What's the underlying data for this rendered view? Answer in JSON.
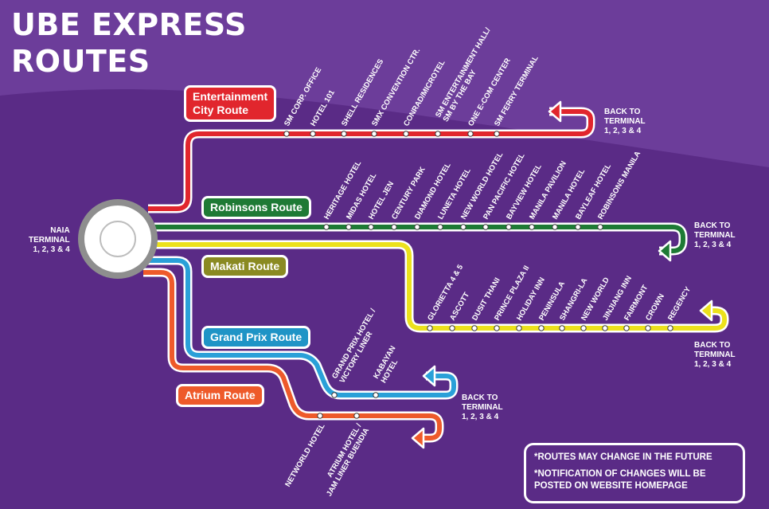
{
  "title": [
    "UBE EXPRESS",
    "ROUTES"
  ],
  "origin": [
    "NAIA",
    "TERMINAL",
    "1, 2, 3 & 4"
  ],
  "routes": [
    {
      "id": "entertainment",
      "label": [
        "Entertainment",
        "City Route"
      ],
      "color": "#e1262d",
      "stops": [
        [
          "SM CORP. OFFICE"
        ],
        [
          "HOTEL 101"
        ],
        [
          "SHELL RESIDENCES"
        ],
        [
          "SMX CONVENTION CTR."
        ],
        [
          "CONRAD/MICROTEL"
        ],
        [
          "SM ENTERTAINMENT HALL/",
          "SM BY THE BAY"
        ],
        [
          "ONE E-COM CENTER"
        ],
        [
          "SM FERRY TERMINAL"
        ]
      ],
      "terminal": [
        "BACK TO",
        "TERMINAL",
        "1, 2, 3 & 4"
      ]
    },
    {
      "id": "robinsons",
      "label": [
        "Robinsons Route"
      ],
      "color": "#1e7a35",
      "stops": [
        [
          "HERITAGE HOTEL"
        ],
        [
          "MIDAS HOTEL"
        ],
        [
          "HOTEL JEN"
        ],
        [
          "CENTURY PARK"
        ],
        [
          "DIAMOND HOTEL"
        ],
        [
          "LUNETA HOTEL"
        ],
        [
          "NEW WORLD HOTEL"
        ],
        [
          "PAN PACIFIC HOTEL"
        ],
        [
          "BAYVIEW HOTEL"
        ],
        [
          "MANILA PAVILION"
        ],
        [
          "MANILA HOTEL"
        ],
        [
          "BAYLEAF HOTEL"
        ],
        [
          "ROBINSONS MANILA"
        ]
      ],
      "terminal": [
        "BACK TO",
        "TERMINAL",
        "1, 2, 3 & 4"
      ]
    },
    {
      "id": "makati",
      "label": [
        "Makati Route"
      ],
      "color": "#ece11c",
      "label_bg": "#8a8a22",
      "stops": [
        [
          "GLORIETTA 4 & 5"
        ],
        [
          "ASCOTT"
        ],
        [
          "DUSIT THANI"
        ],
        [
          "PRINCE PLAZA II"
        ],
        [
          "HOLIDAY INN"
        ],
        [
          "PENINSULA"
        ],
        [
          "SHANGRI-LA"
        ],
        [
          "NEW WORLD"
        ],
        [
          "JINJIANG INN"
        ],
        [
          "FAIRMONT"
        ],
        [
          "CROWN"
        ],
        [
          "REGENCY"
        ]
      ],
      "terminal": [
        "BACK TO",
        "TERMINAL",
        "1, 2, 3 & 4"
      ]
    },
    {
      "id": "grandprix",
      "label": [
        "Grand Prix Route"
      ],
      "color": "#2aa0d8",
      "label_bg": "#1f94c6",
      "stops": [
        [
          "GRAND PRIX HOTEL /",
          "VICTORY LINER"
        ],
        [
          "KABAYAN",
          "HOTEL"
        ]
      ],
      "terminal": [
        "BACK TO",
        "TERMINAL",
        "1, 2, 3 & 4"
      ]
    },
    {
      "id": "atrium",
      "label": [
        "Atrium Route"
      ],
      "color": "#ee5a2a",
      "stops": [
        [
          "NETWORLD HOTEL"
        ],
        [
          "ATRIUM HOTEL /",
          "JAM LINER BUENDIA"
        ]
      ]
    }
  ],
  "notes": [
    "*ROUTES MAY CHANGE IN THE FUTURE",
    "*NOTIFICATION OF CHANGES WILL BE POSTED ON WEBSITE HOMEPAGE"
  ]
}
